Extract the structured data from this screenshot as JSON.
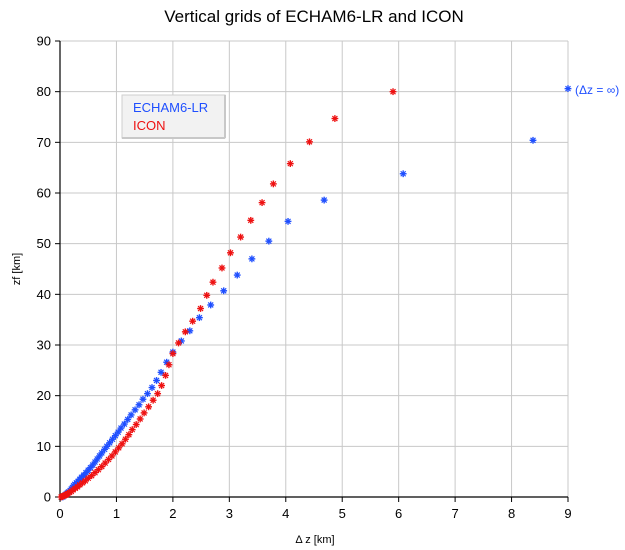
{
  "chart_data": {
    "type": "scatter",
    "title": "Vertical grids of ECHAM6-LR and ICON",
    "xlabel": "Δ z [km]",
    "ylabel": "zf [km]",
    "xlim": [
      0,
      9
    ],
    "ylim": [
      0,
      90
    ],
    "x_ticks": [
      "0",
      "1",
      "2",
      "3",
      "4",
      "5",
      "6",
      "7",
      "8",
      "9"
    ],
    "y_ticks": [
      "0",
      "10",
      "20",
      "30",
      "40",
      "50",
      "60",
      "70",
      "80",
      "90"
    ],
    "grid": true,
    "legend_position": "upper-left inside",
    "colors": {
      "ECHAM6-LR": "#1f4fff",
      "ICON": "#ee1111",
      "grid": "#c8c8c8",
      "axis": "#000000",
      "legend_bg": "#f2f2f2",
      "legend_border": "#cfcfcf"
    },
    "series": [
      {
        "name": "ECHAM6-LR",
        "points": [
          [
            0.05,
            0.0
          ],
          [
            0.07,
            0.2
          ],
          [
            0.09,
            0.4
          ],
          [
            0.11,
            0.6
          ],
          [
            0.13,
            0.8
          ],
          [
            0.15,
            1.0
          ],
          [
            0.18,
            1.3
          ],
          [
            0.2,
            1.6
          ],
          [
            0.22,
            1.9
          ],
          [
            0.24,
            2.2
          ],
          [
            0.26,
            2.5
          ],
          [
            0.29,
            2.8
          ],
          [
            0.32,
            3.1
          ],
          [
            0.35,
            3.5
          ],
          [
            0.38,
            3.9
          ],
          [
            0.42,
            4.3
          ],
          [
            0.46,
            4.8
          ],
          [
            0.5,
            5.3
          ],
          [
            0.54,
            5.8
          ],
          [
            0.58,
            6.3
          ],
          [
            0.62,
            6.9
          ],
          [
            0.66,
            7.5
          ],
          [
            0.7,
            8.1
          ],
          [
            0.74,
            8.7
          ],
          [
            0.79,
            9.4
          ],
          [
            0.83,
            10.0
          ],
          [
            0.88,
            10.7
          ],
          [
            0.93,
            11.4
          ],
          [
            0.98,
            12.1
          ],
          [
            1.03,
            12.8
          ],
          [
            1.08,
            13.6
          ],
          [
            1.14,
            14.4
          ],
          [
            1.2,
            15.3
          ],
          [
            1.26,
            16.2
          ],
          [
            1.33,
            17.2
          ],
          [
            1.4,
            18.2
          ],
          [
            1.47,
            19.3
          ],
          [
            1.55,
            20.4
          ],
          [
            1.63,
            21.6
          ],
          [
            1.71,
            23.0
          ],
          [
            1.79,
            24.6
          ],
          [
            1.89,
            26.6
          ],
          [
            2.0,
            28.6
          ],
          [
            2.15,
            30.8
          ],
          [
            2.3,
            32.8
          ],
          [
            2.47,
            35.4
          ],
          [
            2.67,
            37.9
          ],
          [
            2.9,
            40.7
          ],
          [
            3.14,
            43.8
          ],
          [
            3.4,
            47.0
          ],
          [
            3.7,
            50.5
          ],
          [
            4.04,
            54.4
          ],
          [
            4.68,
            58.6
          ],
          [
            6.08,
            63.8
          ],
          [
            8.38,
            70.4
          ],
          [
            9.0,
            80.6
          ]
        ],
        "annotation": "(Δz = ∞)"
      },
      {
        "name": "ICON",
        "points": [
          [
            0.02,
            0.0
          ],
          [
            0.04,
            0.1
          ],
          [
            0.06,
            0.2
          ],
          [
            0.08,
            0.3
          ],
          [
            0.1,
            0.4
          ],
          [
            0.12,
            0.5
          ],
          [
            0.14,
            0.7
          ],
          [
            0.17,
            0.9
          ],
          [
            0.2,
            1.1
          ],
          [
            0.23,
            1.4
          ],
          [
            0.27,
            1.7
          ],
          [
            0.31,
            2.0
          ],
          [
            0.35,
            2.4
          ],
          [
            0.4,
            2.8
          ],
          [
            0.45,
            3.2
          ],
          [
            0.5,
            3.7
          ],
          [
            0.56,
            4.2
          ],
          [
            0.62,
            4.8
          ],
          [
            0.68,
            5.4
          ],
          [
            0.74,
            6.0
          ],
          [
            0.8,
            6.7
          ],
          [
            0.86,
            7.4
          ],
          [
            0.92,
            8.1
          ],
          [
            0.98,
            8.9
          ],
          [
            1.04,
            9.7
          ],
          [
            1.1,
            10.5
          ],
          [
            1.16,
            11.4
          ],
          [
            1.22,
            12.3
          ],
          [
            1.28,
            13.3
          ],
          [
            1.35,
            14.3
          ],
          [
            1.42,
            15.4
          ],
          [
            1.49,
            16.6
          ],
          [
            1.57,
            17.8
          ],
          [
            1.65,
            19.1
          ],
          [
            1.73,
            20.4
          ],
          [
            1.8,
            22.0
          ],
          [
            1.87,
            24.0
          ],
          [
            1.93,
            26.1
          ],
          [
            2.0,
            28.3
          ],
          [
            2.1,
            30.4
          ],
          [
            2.22,
            32.6
          ],
          [
            2.35,
            34.7
          ],
          [
            2.49,
            37.2
          ],
          [
            2.6,
            39.8
          ],
          [
            2.71,
            42.4
          ],
          [
            2.87,
            45.2
          ],
          [
            3.02,
            48.2
          ],
          [
            3.2,
            51.3
          ],
          [
            3.38,
            54.6
          ],
          [
            3.58,
            58.1
          ],
          [
            3.78,
            61.8
          ],
          [
            4.08,
            65.8
          ],
          [
            4.42,
            70.1
          ],
          [
            4.87,
            74.7
          ],
          [
            5.9,
            80.0
          ]
        ]
      }
    ],
    "legend": [
      "ECHAM6-LR",
      "ICON"
    ]
  }
}
